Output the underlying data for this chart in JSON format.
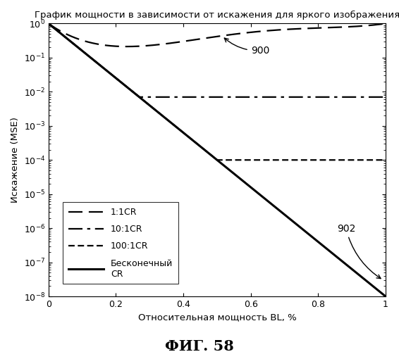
{
  "title": "График мощности в зависимости от искажения для яркого изображения",
  "xlabel": "Относительная мощность BL, %",
  "ylabel": "Искажение (MSE)",
  "fig_label": "ФИГ. 58",
  "xlim": [
    0,
    1.0
  ],
  "annotation_900": "900",
  "annotation_902": "902",
  "legend_entries": [
    "1:1CR",
    "10:1CR",
    "100:1CR",
    "Бесконечный\nCR"
  ],
  "background_color": "#ffffff",
  "line_color": "#000000"
}
